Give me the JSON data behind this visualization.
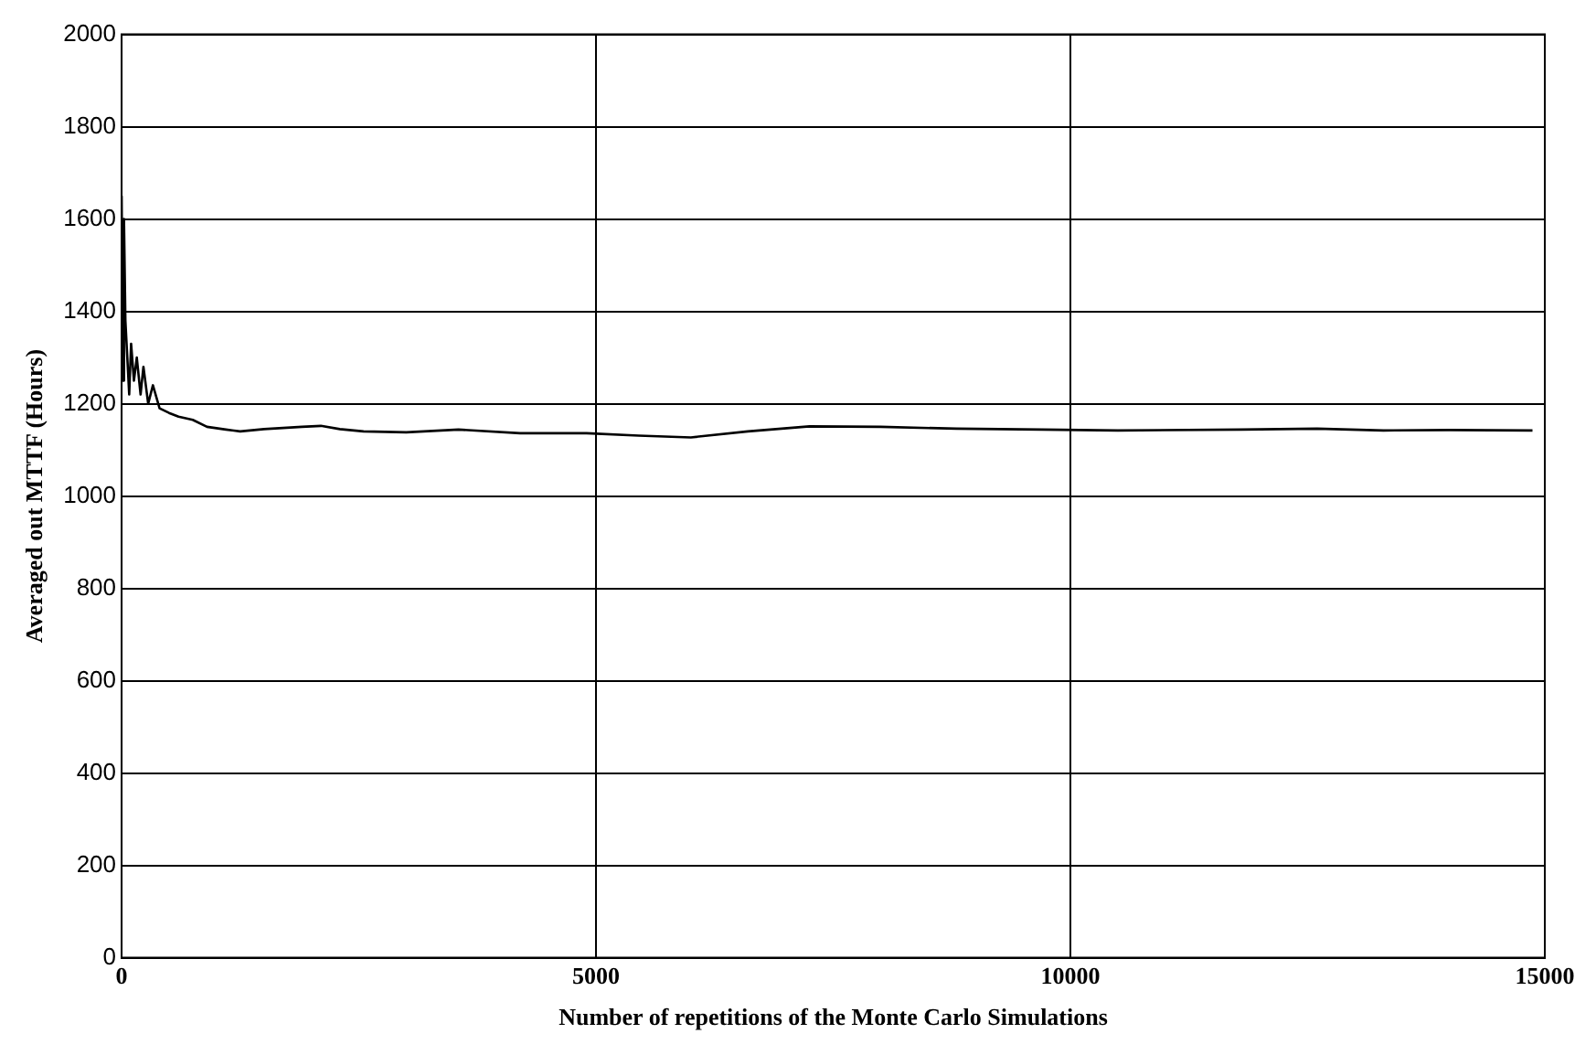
{
  "chart_data": {
    "type": "line",
    "xlabel": "Number of repetitions of the Monte Carlo Simulations",
    "ylabel": "Averaged out MTTF (Hours)",
    "x": [
      0,
      15,
      25,
      40,
      60,
      80,
      100,
      130,
      160,
      200,
      230,
      280,
      330,
      400,
      500,
      600,
      750,
      900,
      1100,
      1250,
      1500,
      1900,
      2100,
      2300,
      2550,
      3000,
      3550,
      4200,
      4900,
      5450,
      6000,
      6600,
      7250,
      8000,
      8800,
      9700,
      10500,
      11800,
      12600,
      13300,
      14000,
      14870
    ],
    "series": [
      {
        "color": "#000000",
        "values": [
          1650,
          1250,
          1600,
          1380,
          1300,
          1220,
          1330,
          1250,
          1300,
          1220,
          1280,
          1200,
          1240,
          1190,
          1180,
          1172,
          1165,
          1150,
          1144,
          1140,
          1145,
          1150,
          1152,
          1145,
          1140,
          1138,
          1144,
          1136,
          1136,
          1131,
          1127,
          1140,
          1151,
          1150,
          1146,
          1144,
          1142,
          1144,
          1146,
          1142,
          1143,
          1142
        ]
      }
    ],
    "xlim": [
      0,
      15000
    ],
    "xticks": [
      0,
      5000,
      10000,
      15000
    ],
    "ylim": [
      0,
      2000
    ],
    "yticks": [
      0,
      200,
      400,
      600,
      800,
      1000,
      1200,
      1400,
      1600,
      1800,
      2000
    ],
    "grid": true,
    "line_style": "solid",
    "marker": "none",
    "legend": false
  }
}
